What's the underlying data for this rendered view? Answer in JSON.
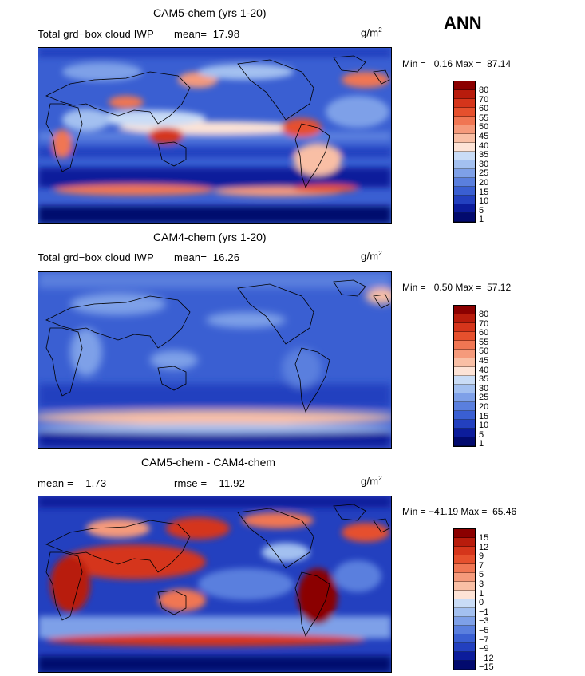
{
  "season": "ANN",
  "panels": [
    {
      "title": "CAM5-chem (yrs 1-20)",
      "subtitle": "Total grd−box cloud IWP",
      "mean_label": "mean=",
      "mean": "17.98",
      "units": "g/m",
      "units_exp": "2",
      "min_label": "Min =",
      "min": "0.16",
      "max_label": "Max =",
      "max": "87.14",
      "levels": [
        "80",
        "70",
        "60",
        "55",
        "50",
        "45",
        "40",
        "35",
        "30",
        "25",
        "20",
        "15",
        "10",
        "5",
        "1"
      ],
      "colors": [
        "#8b0000",
        "#b81c0c",
        "#d5351b",
        "#e6502d",
        "#f07653",
        "#f59a7b",
        "#f9bfa5",
        "#fde3d6",
        "#c9dcf6",
        "#a3c0f0",
        "#7ea0e8",
        "#5a7fde",
        "#3a5fd2",
        "#2340bf",
        "#0c1c9b",
        "#020a6e"
      ]
    },
    {
      "title": "CAM4-chem (yrs 1-20)",
      "subtitle": "Total grd−box cloud IWP",
      "mean_label": "mean=",
      "mean": "16.26",
      "units": "g/m",
      "units_exp": "2",
      "min_label": "Min =",
      "min": "0.50",
      "max_label": "Max =",
      "max": "57.12",
      "levels": [
        "80",
        "70",
        "60",
        "55",
        "50",
        "45",
        "40",
        "35",
        "30",
        "25",
        "20",
        "15",
        "10",
        "5",
        "1"
      ],
      "colors": [
        "#8b0000",
        "#b81c0c",
        "#d5351b",
        "#e6502d",
        "#f07653",
        "#f59a7b",
        "#f9bfa5",
        "#fde3d6",
        "#c9dcf6",
        "#a3c0f0",
        "#7ea0e8",
        "#5a7fde",
        "#3a5fd2",
        "#2340bf",
        "#0c1c9b",
        "#020a6e"
      ]
    },
    {
      "title": "CAM5-chem - CAM4-chem",
      "mean_label": "mean =",
      "mean": "1.73",
      "rmse_label": "rmse =",
      "rmse": "11.92",
      "units": "g/m",
      "units_exp": "2",
      "min_label": "Min =",
      "min": "−41.19",
      "max_label": "Max =",
      "max": "65.46",
      "levels": [
        "15",
        "12",
        "9",
        "7",
        "5",
        "3",
        "1",
        "0",
        "−1",
        "−3",
        "−5",
        "−7",
        "−9",
        "−12",
        "−15"
      ],
      "colors": [
        "#8b0000",
        "#b81c0c",
        "#d5351b",
        "#e6502d",
        "#f07653",
        "#f59a7b",
        "#f9bfa5",
        "#fde3d6",
        "#c9dcf6",
        "#a3c0f0",
        "#7ea0e8",
        "#5a7fde",
        "#3a5fd2",
        "#2340bf",
        "#0c1c9b",
        "#020a6e"
      ]
    }
  ]
}
